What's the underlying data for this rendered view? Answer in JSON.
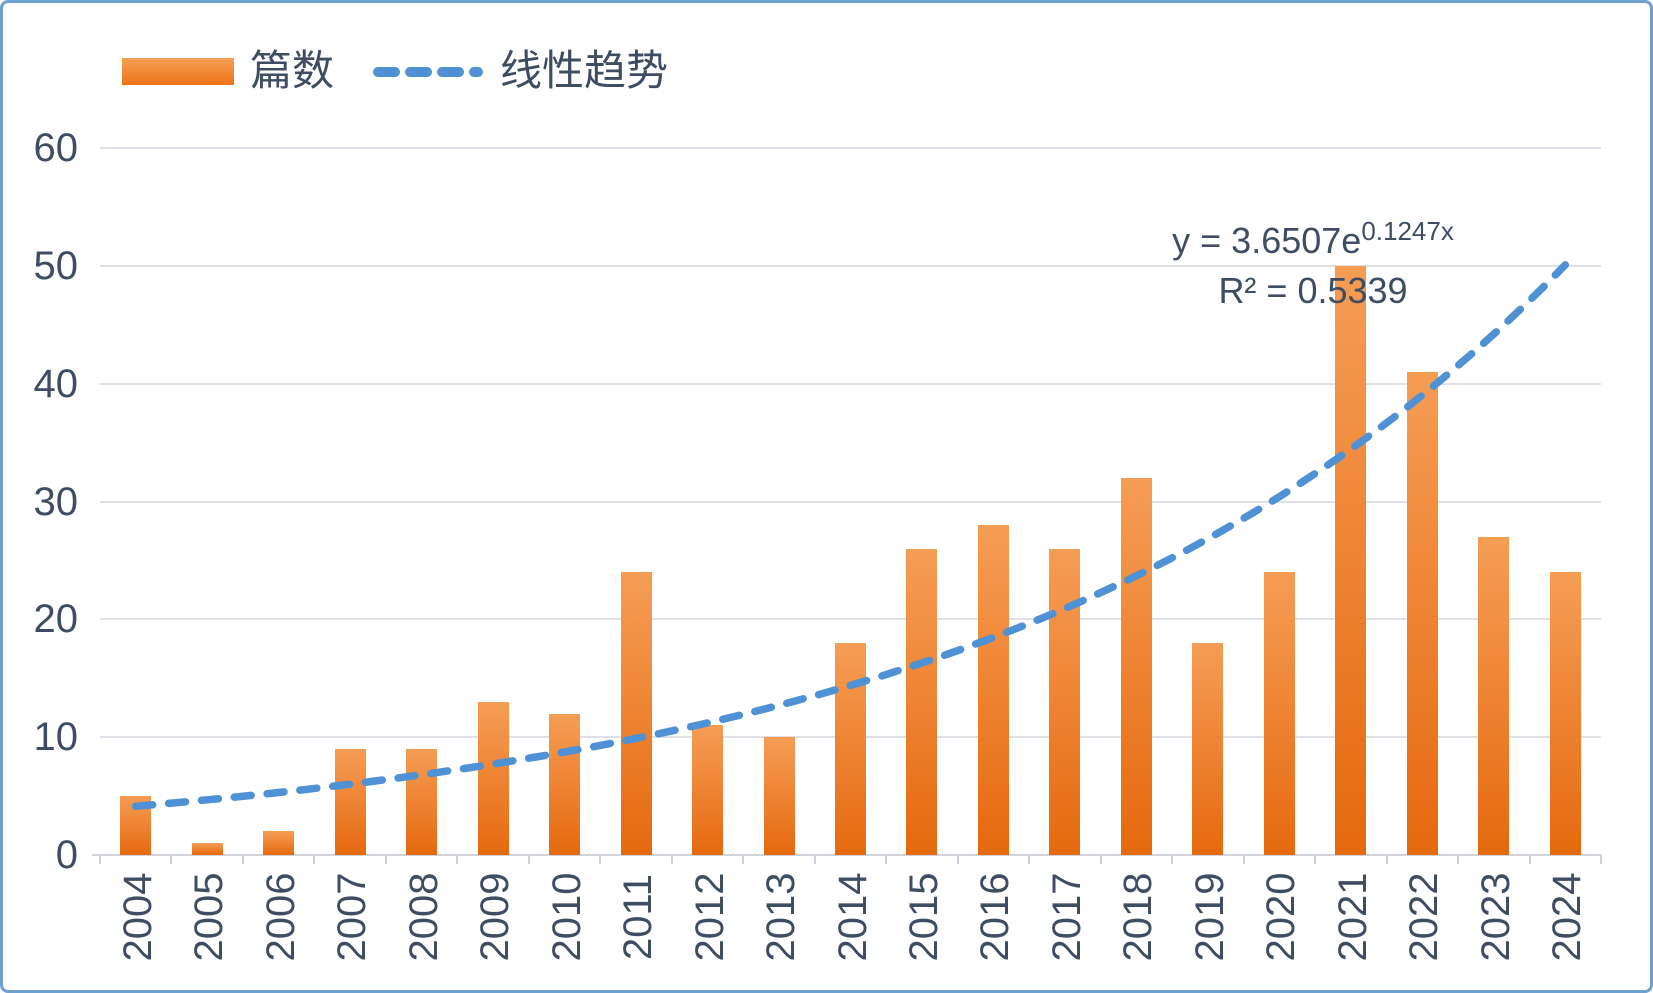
{
  "frame": {
    "border_color": "#6FA0D2",
    "background": "#FFFFFF"
  },
  "legend": {
    "series_label": "篇数",
    "trend_label": "线性趋势"
  },
  "annotation": {
    "equation_base": "y = 3.6507e",
    "equation_exponent": "0.1247x",
    "r_squared": "R² = 0.5339"
  },
  "chart_data": {
    "type": "bar",
    "title": "",
    "xlabel": "",
    "ylabel": "",
    "categories": [
      "2004",
      "2005",
      "2006",
      "2007",
      "2008",
      "2009",
      "2010",
      "2011",
      "2012",
      "2013",
      "2014",
      "2015",
      "2016",
      "2017",
      "2018",
      "2019",
      "2020",
      "2021",
      "2022",
      "2023",
      "2024"
    ],
    "series": [
      {
        "name": "篇数",
        "values": [
          5,
          1,
          2,
          9,
          9,
          13,
          12,
          24,
          11,
          10,
          18,
          26,
          28,
          26,
          32,
          18,
          24,
          50,
          41,
          27,
          24
        ]
      }
    ],
    "trendline": {
      "name": "线性趋势",
      "type": "exponential",
      "coef_a": 3.6507,
      "coef_b": 0.1247,
      "equation": "y = 3.6507e^(0.1247x)",
      "r2": 0.5339
    },
    "ylim": [
      0,
      60
    ],
    "yticks": [
      0,
      10,
      20,
      30,
      40,
      50,
      60
    ],
    "grid": true,
    "legend_position": "top-left",
    "colors": {
      "bar_top": "#F59D55",
      "bar_bottom": "#E5690E",
      "trend_blue": "#4E91D5",
      "grid_gray": "#E0E0E8",
      "text_slate": "#3F4D63"
    }
  }
}
